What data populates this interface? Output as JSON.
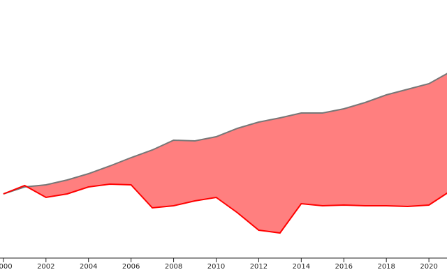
{
  "chart_data": {
    "type": "difference",
    "x": [
      2000,
      2001,
      2002,
      2003,
      2004,
      2005,
      2006,
      2007,
      2008,
      2009,
      2010,
      2011,
      2012,
      2013,
      2014,
      2015,
      2016,
      2017,
      2018,
      2019,
      2020,
      2021
    ],
    "series": [
      {
        "color": "#777777",
        "values": [
          92,
          102,
          105,
          112,
          121,
          132,
          144,
          155,
          169,
          168,
          174,
          186,
          195,
          201,
          208,
          208,
          214,
          223,
          234,
          242,
          250,
          267
        ]
      },
      {
        "color": "#ff0000",
        "values": [
          92,
          104,
          87,
          92,
          102,
          106,
          105,
          72,
          75,
          82,
          87,
          65,
          40,
          36,
          78,
          75,
          76,
          75,
          75,
          74,
          76,
          96
        ]
      }
    ],
    "fill_color": "#ff7f7f",
    "xlim": [
      1999.84,
      2020.85
    ],
    "xticks": [
      2000,
      2002,
      2004,
      2006,
      2008,
      2010,
      2012,
      2014,
      2016,
      2018,
      2020
    ],
    "ylim": [
      0,
      370
    ]
  }
}
